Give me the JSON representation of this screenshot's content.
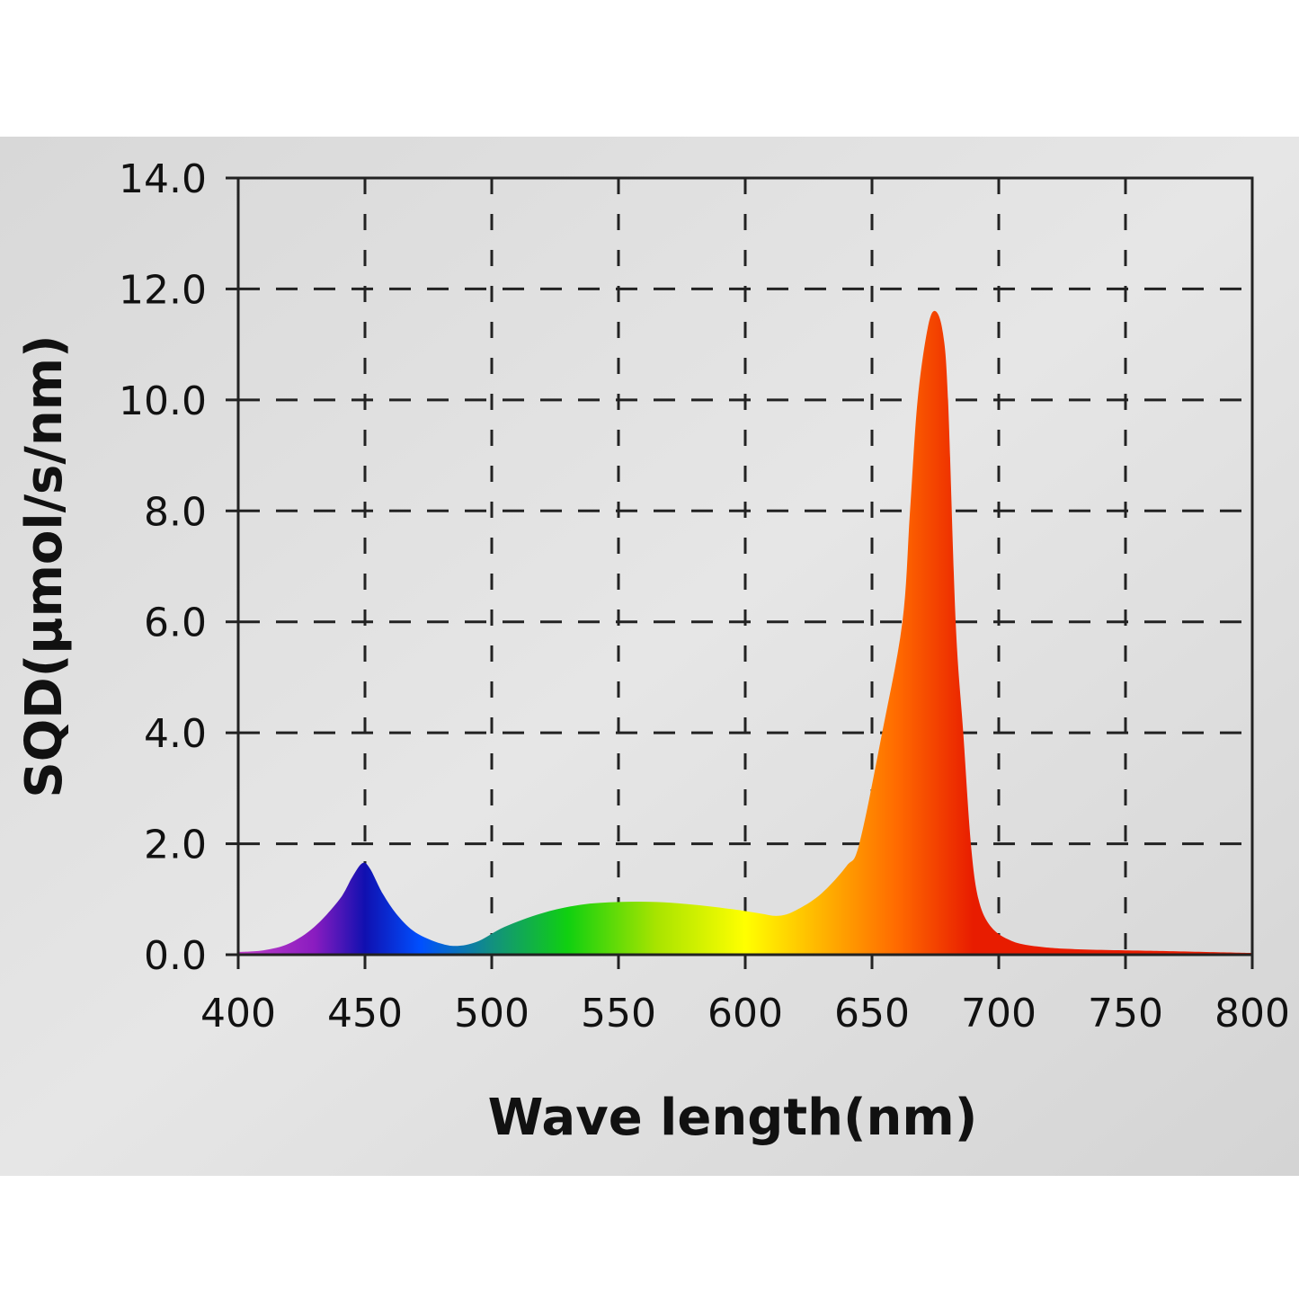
{
  "chart_data": {
    "type": "area",
    "title": "",
    "xlabel": "Wave length(nm)",
    "ylabel": "SQD(μmol/s/nm)",
    "xlim": [
      400,
      800
    ],
    "ylim": [
      0,
      14
    ],
    "x_ticks": [
      "400",
      "450",
      "500",
      "550",
      "600",
      "650",
      "700",
      "750",
      "800"
    ],
    "y_ticks": [
      "0.0",
      "2.0",
      "4.0",
      "6.0",
      "8.0",
      "10.0",
      "12.0",
      "14.0"
    ],
    "grid": true,
    "grid_style": "dashed",
    "fill": "visible-spectrum gradient",
    "gradient_colors": [
      {
        "nm": 400,
        "color": "#c040c8"
      },
      {
        "nm": 430,
        "color": "#8a1cc0"
      },
      {
        "nm": 450,
        "color": "#1010b0"
      },
      {
        "nm": 472,
        "color": "#0050ff"
      },
      {
        "nm": 500,
        "color": "#129080"
      },
      {
        "nm": 530,
        "color": "#10d010"
      },
      {
        "nm": 565,
        "color": "#a8e400"
      },
      {
        "nm": 600,
        "color": "#ffff00"
      },
      {
        "nm": 630,
        "color": "#ffb400"
      },
      {
        "nm": 660,
        "color": "#ff6a00"
      },
      {
        "nm": 690,
        "color": "#e81c00"
      },
      {
        "nm": 800,
        "color": "#e81c00"
      }
    ],
    "x": [
      400,
      410,
      420,
      430,
      440,
      445,
      449,
      452,
      457,
      463,
      470,
      480,
      487,
      495,
      505,
      520,
      535,
      550,
      565,
      580,
      595,
      605,
      613,
      620,
      630,
      640,
      645,
      654,
      662,
      665,
      668,
      672,
      675,
      678,
      680,
      683,
      686,
      689,
      692,
      697,
      705,
      715,
      730,
      760,
      800
    ],
    "values": [
      0.05,
      0.08,
      0.2,
      0.5,
      1.0,
      1.4,
      1.65,
      1.55,
      1.1,
      0.7,
      0.4,
      0.2,
      0.16,
      0.25,
      0.5,
      0.75,
      0.9,
      0.95,
      0.95,
      0.9,
      0.82,
      0.75,
      0.7,
      0.8,
      1.1,
      1.6,
      2.0,
      4.0,
      6.0,
      8.0,
      10.0,
      11.3,
      11.6,
      11.2,
      10.0,
      6.0,
      4.0,
      2.0,
      1.0,
      0.5,
      0.25,
      0.15,
      0.1,
      0.07,
      0.03
    ]
  }
}
